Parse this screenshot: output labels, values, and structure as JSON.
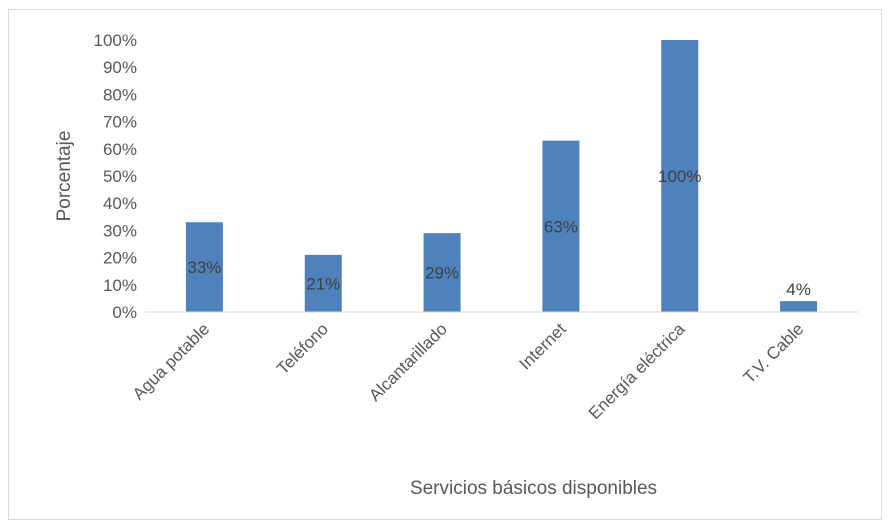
{
  "chart_data": {
    "type": "bar",
    "categories": [
      "Agua potable",
      "Teléfono",
      "Alcantarillado",
      "Internet",
      "Energía eléctrica",
      "T.V. Cable"
    ],
    "values": [
      33,
      21,
      29,
      63,
      100,
      4
    ],
    "data_labels": [
      "33%",
      "21%",
      "29%",
      "63%",
      "100%",
      "4%"
    ],
    "y_ticks": [
      "0%",
      "10%",
      "20%",
      "30%",
      "40%",
      "50%",
      "60%",
      "70%",
      "80%",
      "90%",
      "100%"
    ],
    "xlabel": "Servicios básicos disponibles",
    "ylabel": "Porcentaje",
    "ylim": [
      0,
      100
    ],
    "grid": false,
    "legend": "none",
    "bar_color": "#4F81BD"
  }
}
